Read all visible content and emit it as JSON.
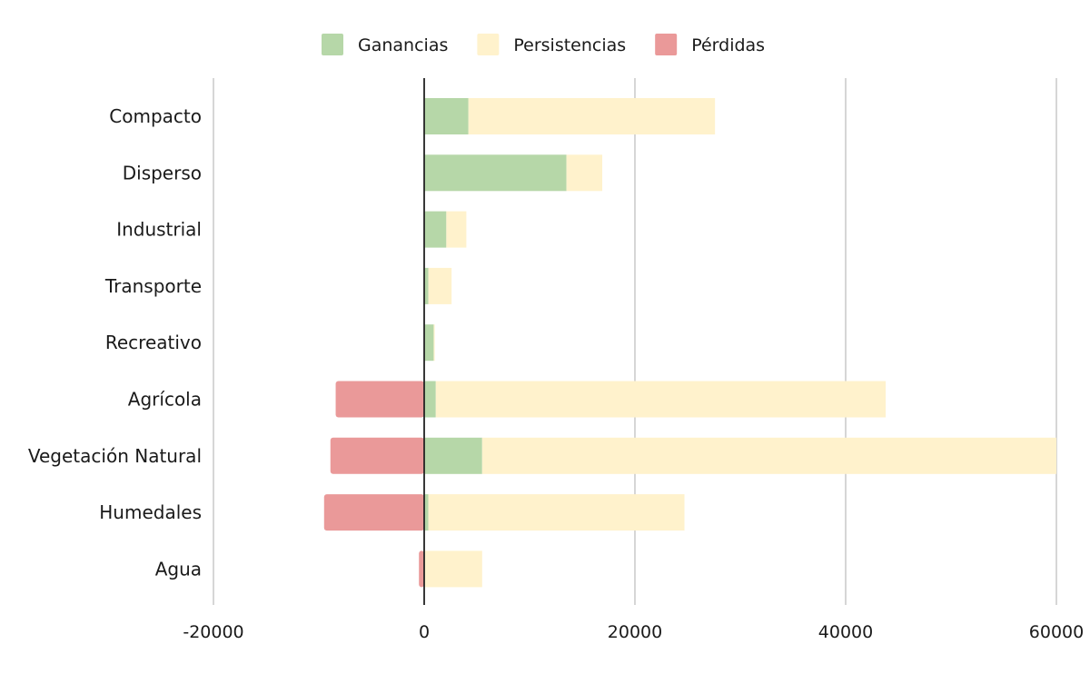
{
  "chart_data": {
    "type": "bar",
    "orientation": "horizontal",
    "stacked": true,
    "title": "",
    "xlabel": "",
    "ylabel": "",
    "xlim": [
      -20000,
      60000
    ],
    "xticks": [
      -20000,
      0,
      20000,
      40000,
      60000
    ],
    "grid": true,
    "legend_position": "top-center",
    "categories": [
      "Compacto",
      "Disperso",
      "Industrial",
      "Transporte",
      "Recreativo",
      "Agrícola",
      "Vegetación Natural",
      "Humedales",
      "Agua"
    ],
    "series": [
      {
        "name": "Ganancias",
        "color": "#b6d7a8",
        "values": [
          4200,
          13500,
          2100,
          400,
          900,
          1100,
          5500,
          400,
          0
        ]
      },
      {
        "name": "Persistencias",
        "color": "#fff2cc",
        "values": [
          23400,
          3400,
          1900,
          2200,
          100,
          42700,
          54500,
          24300,
          5500
        ]
      },
      {
        "name": "Pérdidas",
        "color": "#ea9999",
        "values": [
          0,
          0,
          0,
          0,
          0,
          -8400,
          -8900,
          -9500,
          -500
        ]
      }
    ]
  }
}
